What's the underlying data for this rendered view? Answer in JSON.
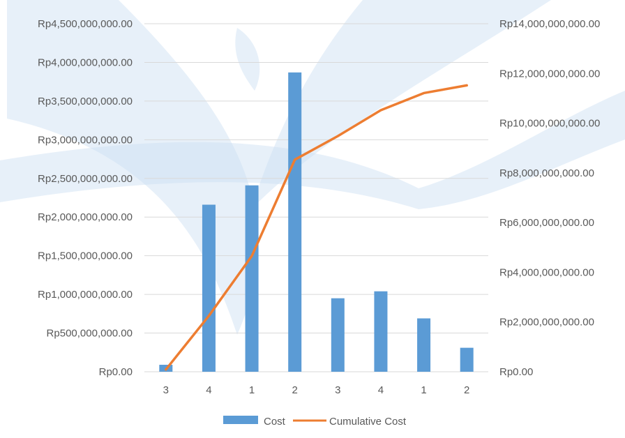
{
  "colors": {
    "bar": "#5B9BD5",
    "line": "#ED7D31",
    "grid": "#D9D9D9",
    "text": "#595959",
    "watermark": "#C9DDF1"
  },
  "chart_data": {
    "type": "bar",
    "categories": [
      "3",
      "4",
      "1",
      "2",
      "3",
      "4",
      "1",
      "2"
    ],
    "series": [
      {
        "name": "Cost",
        "type": "bar",
        "axis": "left",
        "values": [
          90000000,
          2160000000,
          2410000000,
          3870000000,
          950000000,
          1040000000,
          690000000,
          310000000
        ]
      },
      {
        "name": "Cumulative Cost",
        "type": "line",
        "axis": "right",
        "values": [
          90000000,
          2250000000,
          4660000000,
          8530000000,
          9480000000,
          10520000000,
          11210000000,
          11520000000
        ]
      }
    ],
    "y_left": {
      "min": 0,
      "max": 4500000000,
      "step": 500000000,
      "tick_labels": [
        "Rp0.00",
        "Rp500,000,000.00",
        "Rp1,000,000,000.00",
        "Rp1,500,000,000.00",
        "Rp2,000,000,000.00",
        "Rp2,500,000,000.00",
        "Rp3,000,000,000.00",
        "Rp3,500,000,000.00",
        "Rp4,000,000,000.00",
        "Rp4,500,000,000.00"
      ]
    },
    "y_right": {
      "min": 0,
      "max": 14000000000,
      "step": 2000000000,
      "tick_labels": [
        "Rp0.00",
        "Rp2,000,000,000.00",
        "Rp4,000,000,000.00",
        "Rp6,000,000,000.00",
        "Rp8,000,000,000.00",
        "Rp10,000,000,000.00",
        "Rp12,000,000,000.00",
        "Rp14,000,000,000.00"
      ]
    },
    "grid": true,
    "legend_position": "bottom"
  }
}
